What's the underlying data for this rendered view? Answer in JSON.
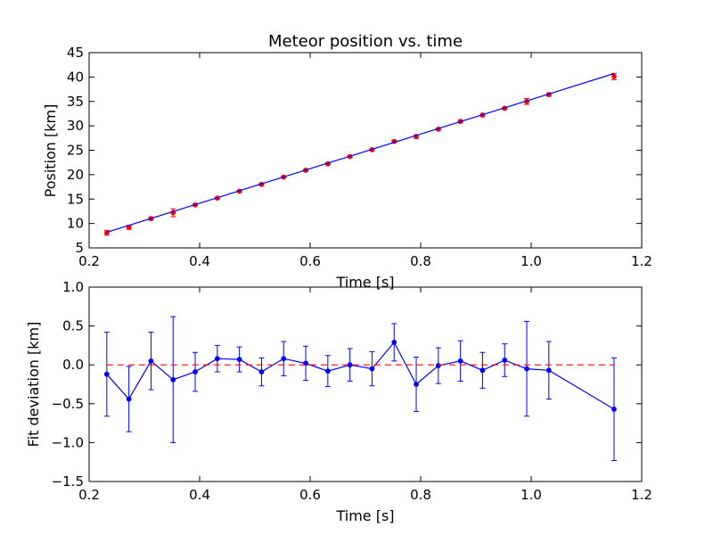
{
  "chart_data": [
    {
      "type": "scatter",
      "title": "Meteor position vs. time",
      "xlabel": "Time [s]",
      "ylabel": "Position [km]",
      "xlim": [
        0.2,
        1.2
      ],
      "ylim": [
        5,
        45
      ],
      "xticks": [
        "0.2",
        "0.4",
        "0.6",
        "0.8",
        "1.0",
        "1.2"
      ],
      "yticks": [
        "5",
        "10",
        "15",
        "20",
        "25",
        "30",
        "35",
        "40",
        "45"
      ],
      "grid": false,
      "series": [
        {
          "kind": "points-with-error",
          "color": "#ff0000",
          "x": [
            0.232,
            0.272,
            0.312,
            0.352,
            0.392,
            0.432,
            0.472,
            0.512,
            0.552,
            0.592,
            0.632,
            0.672,
            0.712,
            0.752,
            0.792,
            0.832,
            0.872,
            0.912,
            0.952,
            0.992,
            1.032,
            1.15
          ],
          "y": [
            8.1,
            9.2,
            11.0,
            12.2,
            13.8,
            15.2,
            16.6,
            18.0,
            19.5,
            20.9,
            22.2,
            23.7,
            25.1,
            26.8,
            27.8,
            29.3,
            30.9,
            32.2,
            33.6,
            35.0,
            36.4,
            40.1
          ],
          "yerr": [
            0.5,
            0.4,
            0.3,
            0.8,
            0.2,
            0.2,
            0.2,
            0.2,
            0.2,
            0.2,
            0.2,
            0.2,
            0.2,
            0.2,
            0.35,
            0.2,
            0.25,
            0.2,
            0.2,
            0.6,
            0.35,
            0.65
          ]
        },
        {
          "kind": "line",
          "color": "#0000ff",
          "x": [
            0.232,
            1.15
          ],
          "y": [
            8.2,
            40.7
          ]
        }
      ]
    },
    {
      "type": "line",
      "title": "",
      "xlabel": "Time [s]",
      "ylabel": "Fit deviation [km]",
      "xlim": [
        0.2,
        1.2
      ],
      "ylim": [
        -1.5,
        1.0
      ],
      "xticks": [
        "0.2",
        "0.4",
        "0.6",
        "0.8",
        "1.0",
        "1.2"
      ],
      "yticks": [
        "−1.5",
        "−1.0",
        "−0.5",
        "0.0",
        "0.5",
        "1.0"
      ],
      "grid": false,
      "series": [
        {
          "kind": "line-with-error",
          "color": "#0000ff",
          "x": [
            0.232,
            0.272,
            0.312,
            0.352,
            0.392,
            0.432,
            0.472,
            0.512,
            0.552,
            0.592,
            0.632,
            0.672,
            0.712,
            0.752,
            0.792,
            0.832,
            0.872,
            0.912,
            0.952,
            0.992,
            1.032,
            1.15
          ],
          "y": [
            -0.12,
            -0.44,
            0.05,
            -0.19,
            -0.09,
            0.08,
            0.07,
            -0.09,
            0.08,
            0.02,
            -0.08,
            0.0,
            -0.05,
            0.29,
            -0.25,
            -0.01,
            0.05,
            -0.07,
            0.06,
            -0.05,
            -0.07,
            -0.57
          ],
          "yerr": [
            0.54,
            0.42,
            0.37,
            0.81,
            0.25,
            0.17,
            0.16,
            0.18,
            0.22,
            0.22,
            0.2,
            0.21,
            0.22,
            0.24,
            0.35,
            0.23,
            0.26,
            0.23,
            0.21,
            0.61,
            0.37,
            0.66
          ]
        },
        {
          "kind": "dashed-line",
          "color": "#ff0000",
          "x": [
            0.232,
            1.15
          ],
          "y": [
            0.0,
            0.0
          ]
        }
      ]
    }
  ]
}
